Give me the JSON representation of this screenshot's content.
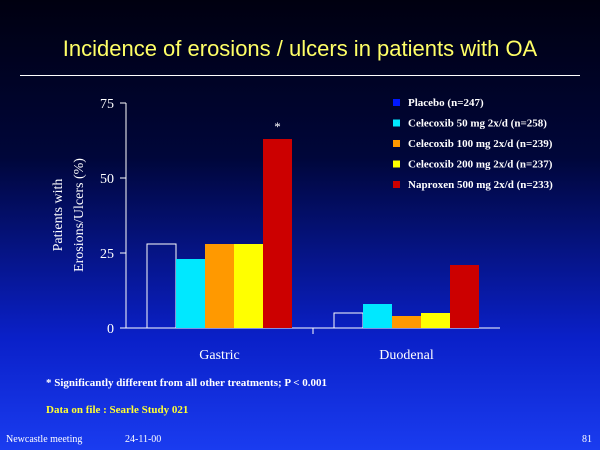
{
  "slide": {
    "title": "Incidence of erosions / ulcers in patients with OA",
    "footnote_significance": "* Significantly different from all other treatments; P < 0.001",
    "footnote_source": "Data on file :  Searle Study 021",
    "footer_meeting": "Newcastle meeting",
    "footer_date": "24-11-00",
    "footer_page": "81"
  },
  "colors": {
    "title": "#ffff66",
    "placebo": "#ffffff",
    "celecoxib_50": "#00e8ff",
    "celecoxib_100": "#ff9900",
    "celecoxib_200": "#ffff00",
    "naproxen": "#cc0000",
    "source_note": "#ffff33"
  },
  "chart_data": {
    "type": "bar",
    "title": "",
    "xlabel": "",
    "ylabel": [
      "Patients with",
      "Erosions/Ulcers (%)"
    ],
    "ylim": [
      0,
      75
    ],
    "yticks": [
      "0",
      "25",
      "50",
      "75"
    ],
    "categories": [
      "Gastric",
      "Duodenal"
    ],
    "legend_position": "top-right",
    "series": [
      {
        "name": "Placebo (n=247)",
        "values": [
          28,
          5
        ],
        "color": "#ffffff"
      },
      {
        "name": "Celecoxib 50 mg 2x/d (n=258)",
        "values": [
          23,
          8
        ],
        "color": "#00e8ff"
      },
      {
        "name": "Celecoxib 100 mg 2x/d (n=239)",
        "values": [
          28,
          4
        ],
        "color": "#ff9900"
      },
      {
        "name": "Celecoxib 200 mg 2x/d (n=237)",
        "values": [
          28,
          5
        ],
        "color": "#ffff00"
      },
      {
        "name": "Naproxen 500 mg 2x/d (n=233)",
        "values": [
          63,
          21
        ],
        "color": "#cc0000"
      }
    ],
    "annotations": [
      {
        "text": "*",
        "series": 4,
        "category": 0
      }
    ]
  }
}
